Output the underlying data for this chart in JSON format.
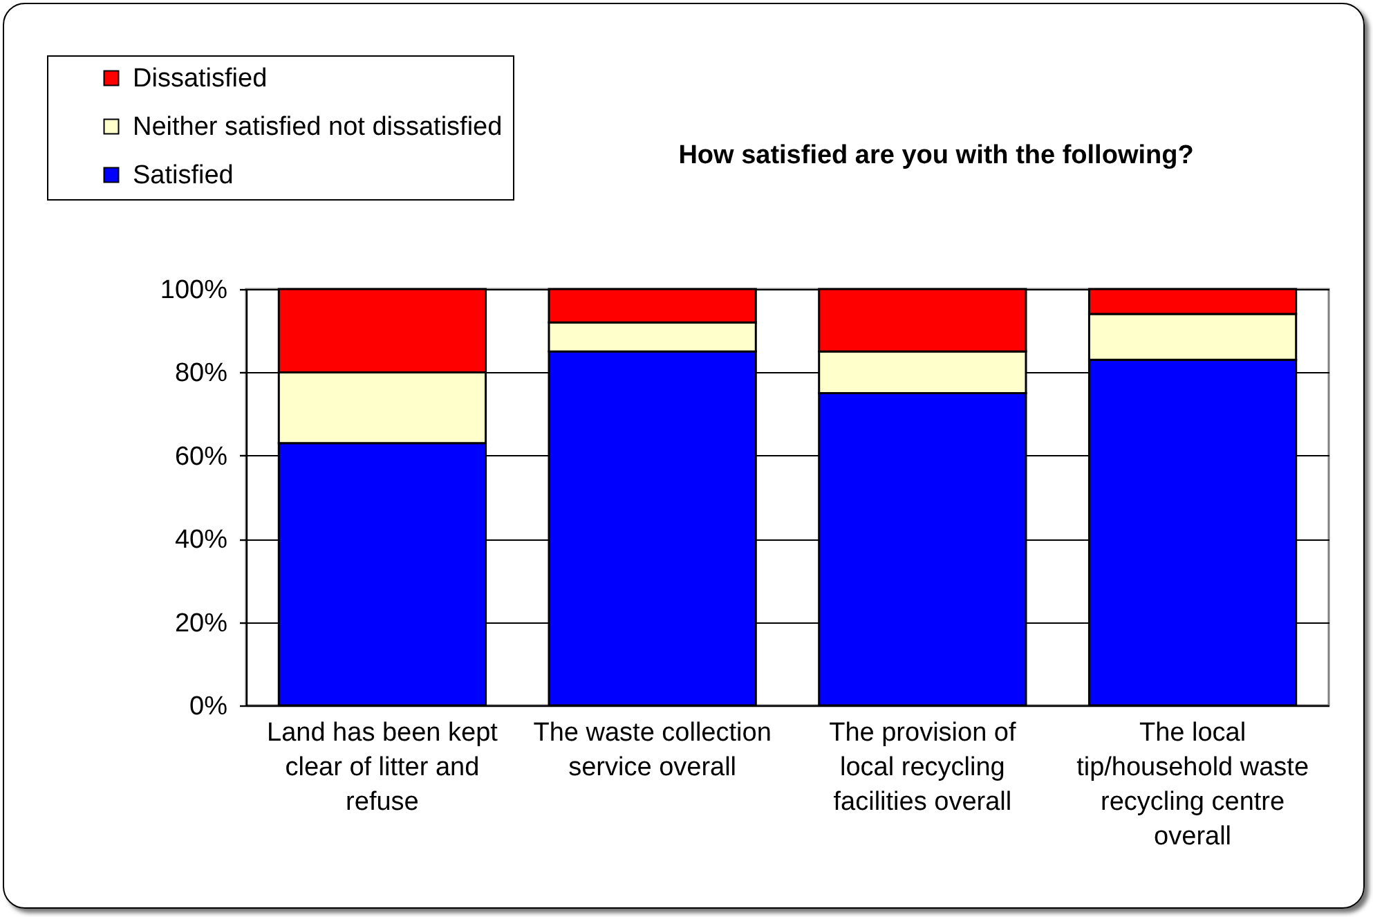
{
  "chart_data": {
    "type": "bar",
    "title": "How satisfied are you with the following?",
    "categories": [
      "Land has been kept clear of litter and refuse",
      "The waste collection service overall",
      "The provision of local recycling facilities overall",
      "The local tip/household waste recycling centre overall"
    ],
    "series": [
      {
        "name": "Satisfied",
        "color": "#0000ff",
        "values": [
          63,
          85,
          75,
          83
        ]
      },
      {
        "name": "Neither satisfied not dissatisfied",
        "color": "#ffffcc",
        "values": [
          17,
          7,
          10,
          11
        ]
      },
      {
        "name": "Dissatisfied",
        "color": "#ff0000",
        "values": [
          20,
          8,
          15,
          6
        ]
      }
    ],
    "stacked": true,
    "ylim": [
      0,
      100
    ],
    "yticks": [
      {
        "value": 0,
        "label": "0%"
      },
      {
        "value": 20,
        "label": "20%"
      },
      {
        "value": 40,
        "label": "40%"
      },
      {
        "value": 60,
        "label": "60%"
      },
      {
        "value": 80,
        "label": "80%"
      },
      {
        "value": 100,
        "label": "100%"
      }
    ],
    "grid": "y",
    "legend": "top left"
  }
}
